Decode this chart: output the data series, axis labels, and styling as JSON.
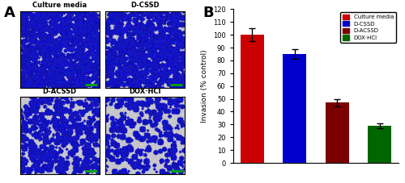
{
  "categories": [
    "Culture media",
    "D-CSSD",
    "D-ACSSD",
    "DOX·HCl"
  ],
  "values": [
    100,
    85,
    47,
    29
  ],
  "errors": [
    5,
    4,
    3,
    2
  ],
  "bar_colors": [
    "#cc0000",
    "#0000cc",
    "#7a0000",
    "#006600"
  ],
  "ylabel": "Invasion (% control)",
  "ylim": [
    0,
    120
  ],
  "yticks": [
    0,
    10,
    20,
    30,
    40,
    50,
    60,
    70,
    80,
    90,
    100,
    110,
    120
  ],
  "legend_labels": [
    "Culture media",
    "D-CSSD",
    "D-ACSSD",
    "DOX·HCl"
  ],
  "legend_colors": [
    "#cc0000",
    "#0000cc",
    "#7a0000",
    "#006600"
  ],
  "panel_labels": [
    "Culture media",
    "D-CSSD",
    "D-ACSSD",
    "DOX·HCl"
  ],
  "cell_densities": [
    0.65,
    0.5,
    0.3,
    0.18
  ],
  "background_color": "#ffffff",
  "img_bg_color": [
    0.78,
    0.78,
    0.8
  ],
  "cell_color": [
    0.08,
    0.08,
    0.75
  ]
}
